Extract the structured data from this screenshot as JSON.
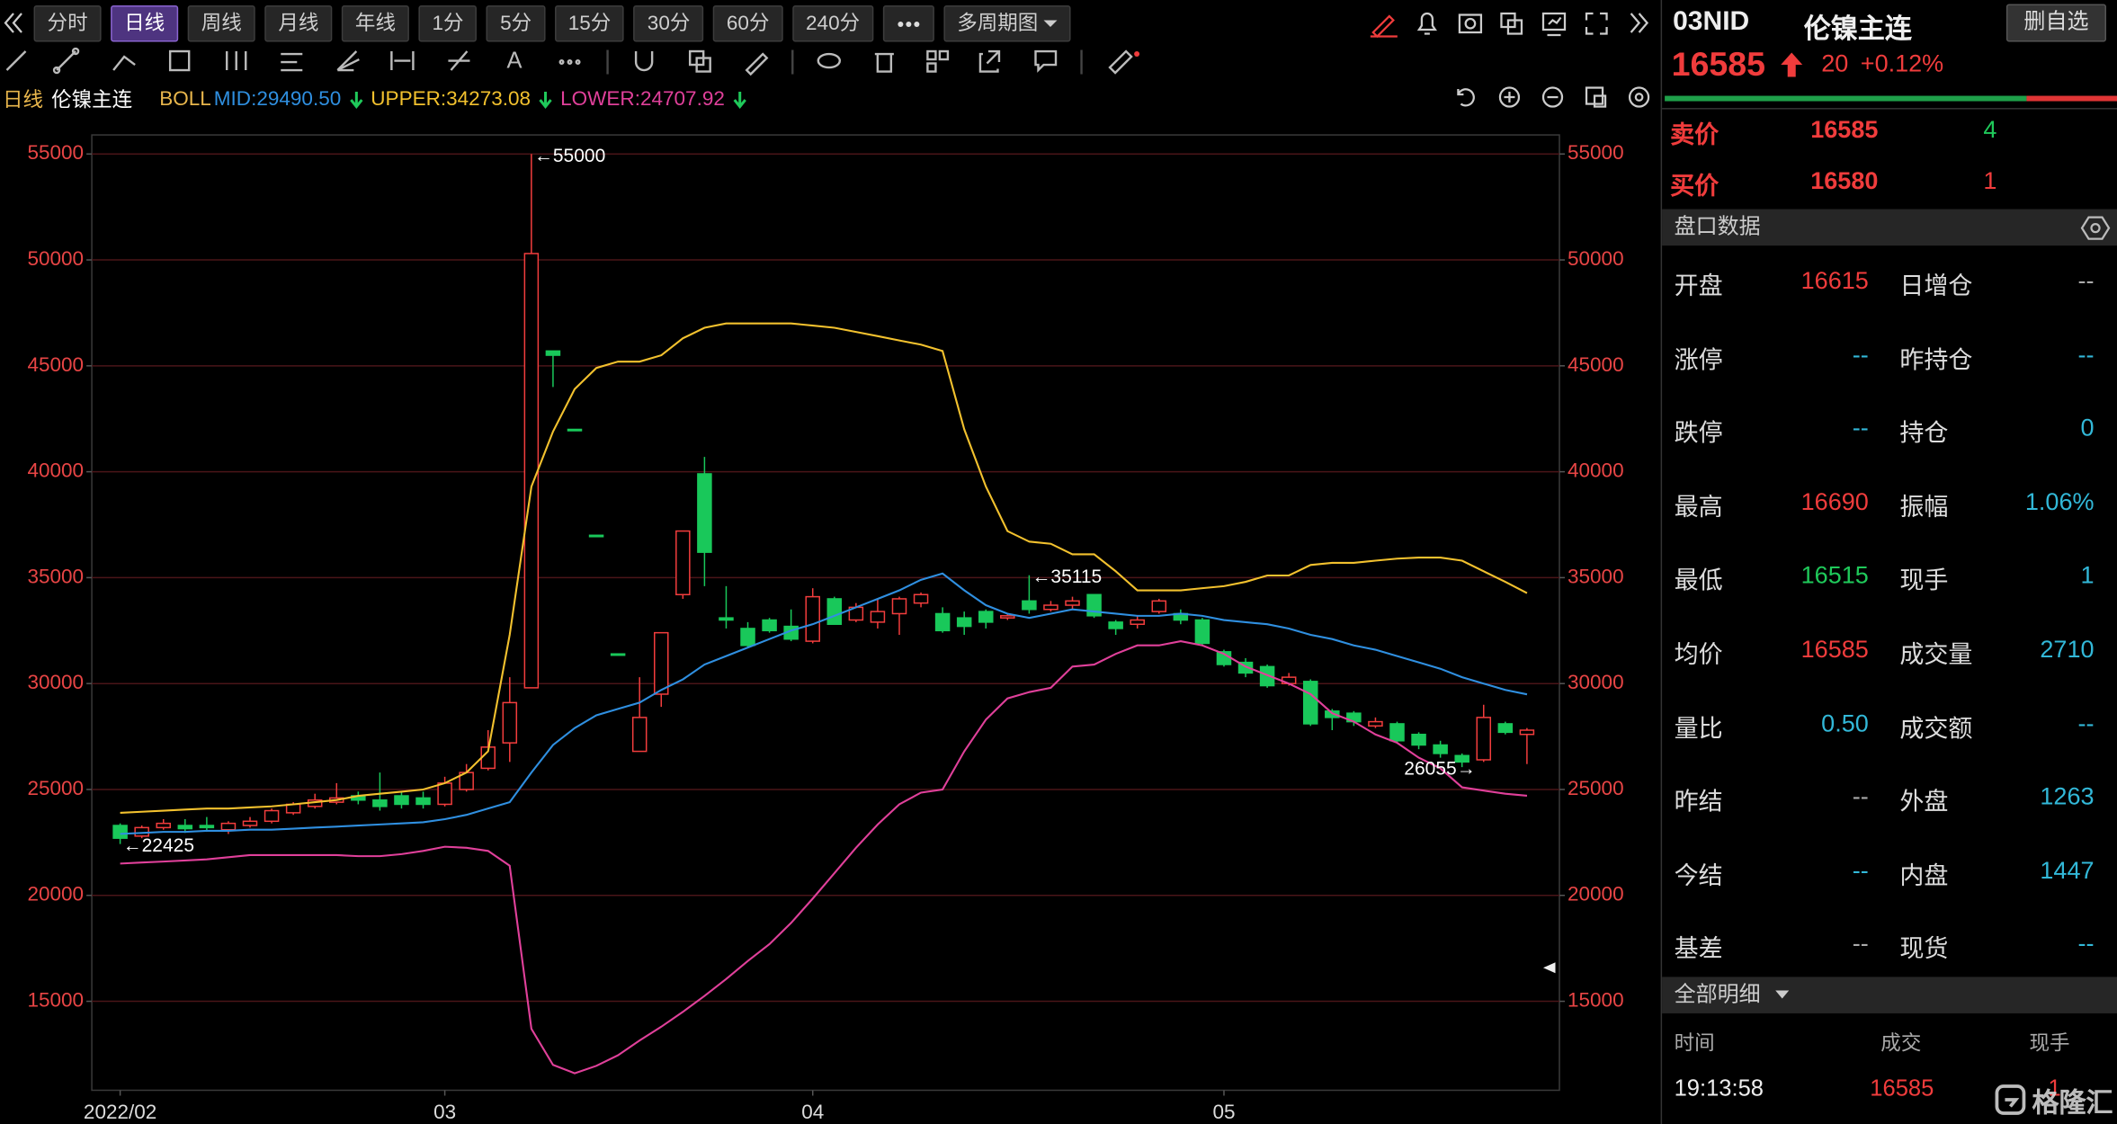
{
  "toolbar": {
    "periods": [
      "分时",
      "日线",
      "周线",
      "月线",
      "年线",
      "1分",
      "5分",
      "15分",
      "30分",
      "60分",
      "240分"
    ],
    "more_periods": "多周期图"
  },
  "legend": {
    "period": "日线",
    "symbol": "伦镍主连",
    "indicator": "BOLL"
  },
  "chart_data": {
    "type": "candlestick",
    "categories": [
      "2022/02",
      null,
      null,
      null,
      null,
      null,
      null,
      null,
      null,
      null,
      null,
      null,
      null,
      null,
      null,
      "03",
      null,
      null,
      null,
      null,
      null,
      null,
      null,
      null,
      null,
      null,
      null,
      null,
      null,
      null,
      null,
      null,
      "04",
      null,
      null,
      null,
      null,
      null,
      null,
      null,
      null,
      null,
      null,
      null,
      null,
      null,
      null,
      null,
      null,
      null,
      null,
      "05",
      null,
      null,
      null,
      null,
      null,
      null,
      null,
      null,
      null,
      null,
      null,
      null,
      null,
      null
    ],
    "open": [
      23300,
      22800,
      23200,
      23300,
      23300,
      23100,
      23300,
      23500,
      23900,
      24200,
      24400,
      24700,
      24500,
      24700,
      24600,
      24300,
      25000,
      26000,
      27200,
      29800,
      45700,
      42000,
      37000,
      31400,
      26800,
      29500,
      34200,
      39900,
      33100,
      32600,
      33000,
      32700,
      32000,
      34000,
      33000,
      32900,
      33300,
      33800,
      33300,
      33100,
      33400,
      33100,
      33900,
      33500,
      33700,
      34200,
      32900,
      32800,
      33400,
      33300,
      33000,
      31500,
      31000,
      30800,
      30000,
      30100,
      28700,
      28600,
      28000,
      28100,
      27600,
      27100,
      26600,
      26400,
      28100,
      27600
    ],
    "high": [
      23400,
      23300,
      23600,
      23600,
      23700,
      23500,
      23700,
      24100,
      24400,
      24800,
      25300,
      24900,
      25800,
      24900,
      24900,
      25600,
      26200,
      27800,
      30300,
      55000,
      45700,
      42000,
      37000,
      31400,
      30300,
      32400,
      37200,
      40700,
      34600,
      32900,
      33100,
      33500,
      34500,
      34100,
      33800,
      34000,
      34100,
      34300,
      33600,
      33400,
      33500,
      33300,
      35115,
      33900,
      34100,
      34200,
      33000,
      33200,
      34000,
      33500,
      33100,
      31600,
      31200,
      30900,
      30500,
      30200,
      28800,
      28700,
      28400,
      28200,
      27700,
      27300,
      26700,
      29000,
      28200,
      27900
    ],
    "low": [
      22425,
      22700,
      23100,
      22950,
      23000,
      22900,
      23200,
      23400,
      23800,
      24100,
      24300,
      24300,
      24000,
      24100,
      24100,
      24200,
      24900,
      25900,
      26300,
      29800,
      44000,
      41950,
      36950,
      31350,
      26800,
      28900,
      34000,
      34600,
      32600,
      31700,
      32400,
      32000,
      31900,
      32800,
      32900,
      32600,
      32300,
      33600,
      32400,
      32300,
      32600,
      33000,
      33300,
      33400,
      33500,
      33100,
      32300,
      32600,
      33300,
      32800,
      31800,
      30800,
      30300,
      29800,
      29900,
      28000,
      27800,
      28000,
      27900,
      27200,
      26900,
      26500,
      26055,
      26300,
      27600,
      26200
    ],
    "close": [
      22700,
      23200,
      23400,
      23150,
      23200,
      23400,
      23500,
      24000,
      24300,
      24500,
      24600,
      24500,
      24200,
      24300,
      24300,
      25300,
      25800,
      27000,
      29100,
      50300,
      45500,
      41950,
      36950,
      31350,
      28400,
      32400,
      37200,
      36200,
      33000,
      31800,
      32500,
      32100,
      34100,
      32800,
      33600,
      33400,
      34000,
      34200,
      32500,
      32700,
      32900,
      33200,
      33500,
      33700,
      33900,
      33200,
      32600,
      33000,
      33900,
      33000,
      31900,
      30900,
      30500,
      29900,
      30300,
      28100,
      28400,
      28200,
      28200,
      27300,
      27100,
      26700,
      26300,
      28400,
      27700,
      27800
    ],
    "up_color": "#f23d3d",
    "down_color": "#19c85a",
    "series": [
      {
        "name": "MID:29490.50",
        "color": "#2f8fe0",
        "values": [
          22900,
          22950,
          23000,
          23000,
          23050,
          23050,
          23100,
          23100,
          23150,
          23200,
          23250,
          23300,
          23350,
          23400,
          23450,
          23600,
          23800,
          24100,
          24400,
          25800,
          27100,
          27900,
          28500,
          28800,
          29100,
          29700,
          30200,
          30900,
          31300,
          31700,
          32100,
          32500,
          32800,
          33200,
          33600,
          34000,
          34400,
          34900,
          35200,
          34400,
          33700,
          33300,
          33100,
          33300,
          33500,
          33400,
          33300,
          33200,
          33200,
          33300,
          33200,
          33000,
          32900,
          32800,
          32600,
          32300,
          32100,
          31800,
          31600,
          31300,
          31000,
          30700,
          30300,
          30000,
          29700,
          29490.5
        ]
      },
      {
        "name": "UPPER:34273.08",
        "color": "#f2c12e",
        "values": [
          23900,
          23950,
          24000,
          24050,
          24100,
          24100,
          24150,
          24200,
          24300,
          24400,
          24500,
          24700,
          24800,
          24900,
          25000,
          25300,
          25800,
          26800,
          32300,
          39300,
          41900,
          43900,
          44900,
          45200,
          45200,
          45500,
          46300,
          46800,
          47000,
          47000,
          47000,
          47000,
          46900,
          46800,
          46600,
          46400,
          46200,
          46000,
          45700,
          42000,
          39300,
          37200,
          36700,
          36600,
          36100,
          36100,
          35300,
          34400,
          34400,
          34400,
          34500,
          34600,
          34800,
          35100,
          35100,
          35600,
          35700,
          35700,
          35800,
          35900,
          35950,
          35950,
          35800,
          35300,
          34800,
          34273.08
        ]
      },
      {
        "name": "LOWER:24707.92",
        "color": "#e0409a",
        "values": [
          21500,
          21550,
          21600,
          21650,
          21700,
          21800,
          21900,
          21900,
          21900,
          21900,
          21900,
          21850,
          21850,
          21950,
          22100,
          22300,
          22250,
          22100,
          21400,
          13700,
          12000,
          11600,
          11950,
          12450,
          13150,
          13800,
          14500,
          15250,
          16050,
          16900,
          17700,
          18700,
          19850,
          21050,
          22250,
          23350,
          24300,
          24850,
          25000,
          26800,
          28300,
          29300,
          29600,
          29800,
          30800,
          30900,
          31400,
          31800,
          31800,
          32000,
          31800,
          31400,
          30800,
          30400,
          30000,
          29500,
          28600,
          28200,
          27600,
          27200,
          26500,
          26000,
          25100,
          24950,
          24800,
          24707.92
        ]
      }
    ],
    "annotations": [
      "←55000",
      "←35115",
      "←22425",
      "26055→"
    ],
    "ylim": [
      10800,
      55900
    ],
    "yticks": [
      15000,
      20000,
      25000,
      30000,
      35000,
      40000,
      45000,
      50000,
      55000
    ],
    "grid": true
  },
  "quote": {
    "code": "03NID",
    "name": "伦镍主连",
    "watch_button": "删自选",
    "price": 16585,
    "change": 20,
    "change_pct": "+0.12%",
    "ask_label": "卖价",
    "ask": 16585,
    "ask_volume": 4,
    "bid_label": "买价",
    "bid": 16580,
    "bid_volume": 1,
    "section": "盘口数据",
    "stats": [
      [
        "开盘",
        16615,
        "日增仓",
        "--"
      ],
      [
        "涨停",
        "--",
        "昨持仓",
        "--"
      ],
      [
        "跌停",
        "--",
        "持仓",
        0
      ],
      [
        "最高",
        16690,
        "振幅",
        "1.06%"
      ],
      [
        "最低",
        16515,
        "现手",
        1
      ],
      [
        "均价",
        16585,
        "成交量",
        2710
      ],
      [
        "量比",
        "0.50",
        "成交额",
        "--"
      ],
      [
        "昨结",
        "--",
        "外盘",
        1263
      ],
      [
        "今结",
        "--",
        "内盘",
        1447
      ],
      [
        "基差",
        "--",
        "现货",
        "--"
      ]
    ],
    "detail": {
      "title": "全部明细",
      "columns": [
        "时间",
        "成交",
        "现手"
      ],
      "rows": [
        [
          "19:13:58",
          16585,
          1
        ]
      ]
    }
  },
  "watermark": "格隆汇"
}
